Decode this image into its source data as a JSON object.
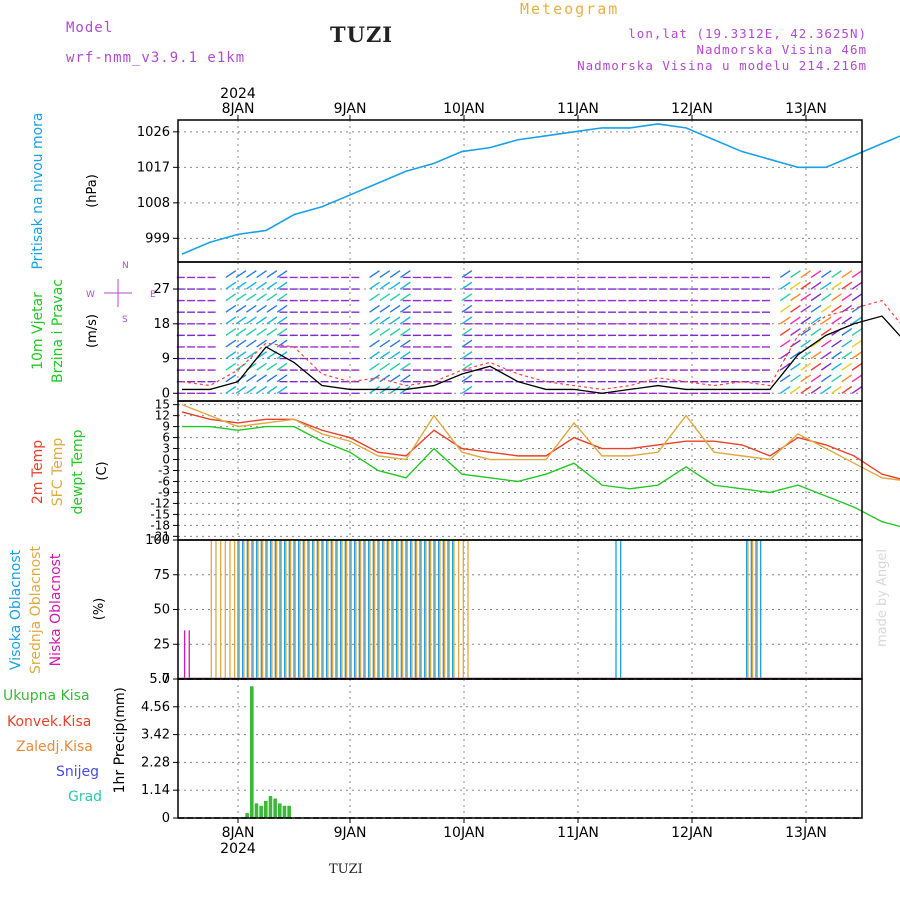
{
  "header": {
    "model_label": "Model",
    "model_name": "wrf-nmm_v3.9.1 e1km",
    "station": "TUZI",
    "meteogram": "Meteogram",
    "lonlat": "lon,lat (19.3312E, 42.3625N)",
    "elevation": "Nadmorska Visina 46m",
    "model_elevation": "Nadmorska Visina u modelu 214.216m",
    "credit": "made by Angel",
    "footer_station": "TUZI"
  },
  "time_axis": {
    "days": [
      "8JAN",
      "9JAN",
      "10JAN",
      "11JAN",
      "12JAN",
      "13JAN"
    ],
    "year": "2024"
  },
  "colors": {
    "pressure": "#1aa0e8",
    "temp2m": "#e8402a",
    "sfc_temp": "#e0a840",
    "dewpt": "#22c822",
    "high_cloud": "#1aa0e8",
    "mid_cloud": "#e0a840",
    "low_cloud": "#d01ab0",
    "precip": "#3ab83a"
  },
  "chart_data": [
    {
      "type": "line",
      "panel": "pressure",
      "ylabel": "Pritisak na nivou mora",
      "unit": "(hPa)",
      "yticks": [
        999,
        1008,
        1017,
        1026
      ],
      "ylim": [
        993,
        1029
      ],
      "x_hours": [
        0,
        6,
        12,
        18,
        24,
        30,
        36,
        42,
        48,
        54,
        60,
        66,
        72,
        78,
        84,
        90,
        96,
        102,
        108,
        114,
        120,
        126,
        132,
        138,
        144,
        150,
        156,
        162
      ],
      "series": [
        {
          "values": [
            995,
            998,
            1000,
            1001,
            1005,
            1007,
            1010,
            1013,
            1016,
            1018,
            1021,
            1022,
            1024,
            1025,
            1026,
            1027,
            1027,
            1028,
            1027,
            1024,
            1021,
            1019,
            1017,
            1017,
            1020,
            1023,
            1026,
            1026
          ]
        }
      ]
    },
    {
      "type": "line",
      "panel": "wind",
      "ylabel": "10m Vjetar Brzina i Pravac",
      "unit": "(m/s)",
      "yticks": [
        0,
        9,
        18,
        27
      ],
      "ylim": [
        -2,
        34
      ],
      "x_hours": [
        0,
        6,
        12,
        18,
        24,
        30,
        36,
        42,
        48,
        54,
        60,
        66,
        72,
        78,
        84,
        90,
        96,
        102,
        108,
        114,
        120,
        126,
        132,
        138,
        144,
        150,
        156,
        162
      ],
      "series": [
        {
          "name": "gust",
          "values": [
            3,
            2,
            6,
            13,
            12,
            5,
            3,
            4,
            2,
            3,
            6,
            8,
            5,
            3,
            2,
            1,
            2,
            4,
            3,
            2,
            3,
            2,
            15,
            20,
            22,
            24,
            15,
            3
          ]
        },
        {
          "name": "speed",
          "values": [
            1,
            1,
            3,
            12,
            8,
            2,
            1,
            1,
            1,
            2,
            5,
            7,
            3,
            1,
            1,
            0,
            1,
            2,
            1,
            1,
            1,
            1,
            10,
            15,
            18,
            20,
            12,
            2
          ]
        }
      ]
    },
    {
      "type": "line",
      "panel": "temperature",
      "ylabel": "2m Temp / SFC Temp / dewpt Temp",
      "unit": "(C)",
      "yticks": [
        -21,
        -18,
        -15,
        -12,
        -9,
        -6,
        -3,
        0,
        3,
        6,
        9,
        12,
        15
      ],
      "ylim": [
        -22,
        16
      ],
      "x_hours": [
        0,
        6,
        12,
        18,
        24,
        30,
        36,
        42,
        48,
        54,
        60,
        66,
        72,
        78,
        84,
        90,
        96,
        102,
        108,
        114,
        120,
        126,
        132,
        138,
        144,
        150,
        156,
        162
      ],
      "series": [
        {
          "name": "2m Temp",
          "values": [
            13,
            11,
            10,
            11,
            11,
            8,
            6,
            2,
            1,
            8,
            3,
            2,
            1,
            1,
            6,
            3,
            3,
            4,
            5,
            5,
            4,
            1,
            6,
            4,
            1,
            -4,
            -6,
            2
          ]
        },
        {
          "name": "SFC Temp",
          "values": [
            15,
            12,
            9,
            10,
            11,
            7,
            5,
            1,
            0,
            12,
            2,
            0,
            0,
            0,
            10,
            1,
            1,
            2,
            12,
            2,
            1,
            0,
            7,
            3,
            -1,
            -5,
            -6,
            5
          ]
        },
        {
          "name": "dewpt Temp",
          "values": [
            9,
            9,
            8,
            9,
            9,
            5,
            2,
            -3,
            -5,
            3,
            -4,
            -5,
            -6,
            -4,
            -1,
            -7,
            -8,
            -7,
            -2,
            -7,
            -8,
            -9,
            -7,
            -10,
            -13,
            -17,
            -19,
            -15
          ]
        }
      ]
    },
    {
      "type": "bar",
      "panel": "cloud",
      "ylabel": "Visoka Oblacnost / Srednja Oblacnost / Niska Oblacnost",
      "unit": "(%)",
      "yticks": [
        0,
        25,
        50,
        75,
        100
      ],
      "ylim": [
        0,
        100
      ],
      "series": [
        {
          "name": "Visoka Oblacnost",
          "spans_hours": [
            [
              12,
              58
            ],
            [
              93,
              94
            ],
            [
              121,
              124
            ]
          ],
          "level": 100
        },
        {
          "name": "Srednja Oblacnost",
          "spans_hours": [
            [
              6,
              61
            ],
            [
              121,
              123
            ]
          ],
          "level": 100
        },
        {
          "name": "Niska Oblacnost",
          "spans_hours": [
            [
              0,
              1
            ],
            [
              158,
              159
            ]
          ],
          "level": 35
        }
      ]
    },
    {
      "type": "bar",
      "panel": "precip",
      "ylabel": "1hr Precip",
      "unit": "(mm)",
      "yticks": [
        0,
        1.14,
        2.28,
        3.42,
        4.56,
        5.7
      ],
      "ylim": [
        0,
        5.7
      ],
      "legend": [
        "Ukupna Kisa",
        "Konvek.Kisa",
        "Zaledj.Kisa",
        "Snijeg",
        "Grad"
      ],
      "x_hours": [
        14,
        15,
        16,
        17,
        18,
        19,
        20,
        21,
        22,
        23
      ],
      "values": [
        0.2,
        5.4,
        0.6,
        0.5,
        0.7,
        0.9,
        0.8,
        0.6,
        0.5,
        0.5
      ]
    }
  ],
  "wind_field": {
    "label_n": "N",
    "label_e": "E",
    "label_w": "W",
    "label_s": "S"
  }
}
